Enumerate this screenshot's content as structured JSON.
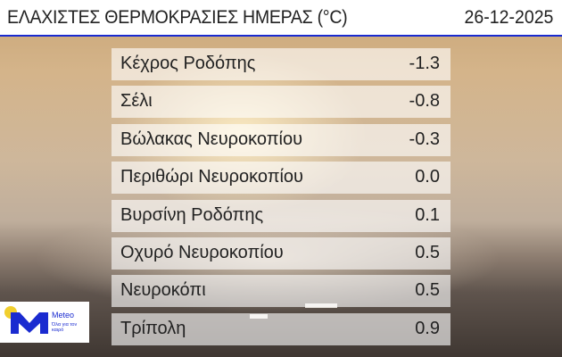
{
  "header": {
    "title": "ΕΛΑΧΙΣΤΕΣ ΘΕΡΜΟΚΡΑΣΙΕΣ ΗΜΕΡΑΣ (°C)",
    "date": "26-12-2025"
  },
  "rows": [
    {
      "name": "Κέχρος Ροδόπης",
      "value": "-1.3"
    },
    {
      "name": "Σέλι",
      "value": "-0.8"
    },
    {
      "name": "Βώλακας Νευροκοπίου",
      "value": "-0.3"
    },
    {
      "name": "Περιθώρι Νευροκοπίου",
      "value": "0.0"
    },
    {
      "name": "Βυρσίνη Ροδόπης",
      "value": "0.1"
    },
    {
      "name": "Οχυρό Νευροκοπίου",
      "value": "0.5"
    },
    {
      "name": "Νευροκόπι",
      "value": "0.5"
    },
    {
      "name": "Τρίπολη",
      "value": "0.9"
    }
  ],
  "logo": {
    "brand": "Meteo",
    "tagline": "Όλα για τον καιρό"
  },
  "colors": {
    "accent": "#1a2bd0",
    "sun": "#f1cf2e"
  }
}
